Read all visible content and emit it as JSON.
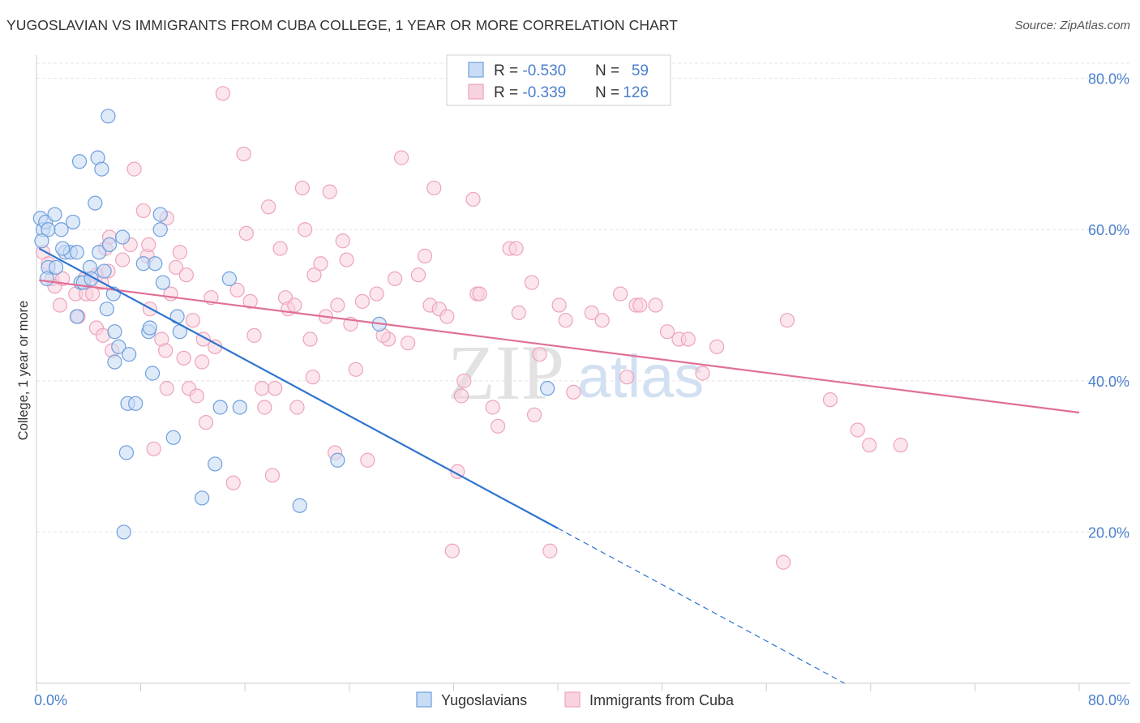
{
  "title": "YUGOSLAVIAN VS IMMIGRANTS FROM CUBA COLLEGE, 1 YEAR OR MORE CORRELATION CHART",
  "source": "Source: ZipAtlas.com",
  "watermark": {
    "zip": "ZIP",
    "atlas": "atlas"
  },
  "colors": {
    "blue": "#2f74d0",
    "blue_fill": "#c9dcf5",
    "blue_stroke": "#6e9fdd",
    "pink": "#e07096",
    "pink_fill": "#f9d2df",
    "pink_stroke": "#eda3bd",
    "axis_text": "#4a7fcb",
    "grid": "#e4e4e4"
  },
  "legend": {
    "rows": [
      {
        "r_label": "R = ",
        "r_value": "-0.530",
        "n_label": "N = ",
        "n_value": "59"
      },
      {
        "r_label": "R = ",
        "r_value": "-0.339",
        "n_label": "N = ",
        "n_value": "126"
      }
    ]
  },
  "bottom_legend": [
    "Yugoslavians",
    "Immigrants from Cuba"
  ],
  "chart_data": {
    "type": "scatter",
    "title": "YUGOSLAVIAN VS IMMIGRANTS FROM CUBA COLLEGE, 1 YEAR OR MORE CORRELATION CHART",
    "xlabel": "",
    "ylabel": "College, 1 year or more",
    "xlim": [
      0,
      80
    ],
    "ylim": [
      0,
      82
    ],
    "x_tick_labels": [
      "0.0%",
      "80.0%"
    ],
    "y_ticks": [
      20,
      40,
      60,
      80
    ],
    "y_tick_labels": [
      "20.0%",
      "40.0%",
      "60.0%",
      "80.0%"
    ],
    "grid": true,
    "series": [
      {
        "name": "Yugoslavians",
        "R": -0.53,
        "N": 59,
        "trend": {
          "x0": 0.2,
          "y0": 57.5,
          "x1": 40.0,
          "y1": 20.5,
          "dash_to_x": 62.0,
          "dash_to_y": 0.0
        },
        "points": [
          [
            0.3,
            61.5
          ],
          [
            0.5,
            60.0
          ],
          [
            0.7,
            61.0
          ],
          [
            0.9,
            60.0
          ],
          [
            0.4,
            58.5
          ],
          [
            1.4,
            62.0
          ],
          [
            1.9,
            60.0
          ],
          [
            2.8,
            61.0
          ],
          [
            3.3,
            69.0
          ],
          [
            4.5,
            63.5
          ],
          [
            4.7,
            69.5
          ],
          [
            5.0,
            68.0
          ],
          [
            5.5,
            75.0
          ],
          [
            2.2,
            57.0
          ],
          [
            2.6,
            57.0
          ],
          [
            3.1,
            57.0
          ],
          [
            2.0,
            57.5
          ],
          [
            0.9,
            55.0
          ],
          [
            1.5,
            55.0
          ],
          [
            4.1,
            55.0
          ],
          [
            4.8,
            57.0
          ],
          [
            5.2,
            54.5
          ],
          [
            5.6,
            58.0
          ],
          [
            6.6,
            59.0
          ],
          [
            8.2,
            55.5
          ],
          [
            9.1,
            55.5
          ],
          [
            9.5,
            60.0
          ],
          [
            9.5,
            62.0
          ],
          [
            0.8,
            53.5
          ],
          [
            3.4,
            53.0
          ],
          [
            3.6,
            53.0
          ],
          [
            9.7,
            53.0
          ],
          [
            14.8,
            53.5
          ],
          [
            3.1,
            48.5
          ],
          [
            5.4,
            49.5
          ],
          [
            10.8,
            48.5
          ],
          [
            6.0,
            46.5
          ],
          [
            8.6,
            46.5
          ],
          [
            8.7,
            47.0
          ],
          [
            11.0,
            46.5
          ],
          [
            6.3,
            44.5
          ],
          [
            6.0,
            42.5
          ],
          [
            7.1,
            43.5
          ],
          [
            8.9,
            41.0
          ],
          [
            7.0,
            37.0
          ],
          [
            7.6,
            37.0
          ],
          [
            14.1,
            36.5
          ],
          [
            15.6,
            36.5
          ],
          [
            10.5,
            32.5
          ],
          [
            6.9,
            30.5
          ],
          [
            13.7,
            29.0
          ],
          [
            23.1,
            29.5
          ],
          [
            12.7,
            24.5
          ],
          [
            20.2,
            23.5
          ],
          [
            6.7,
            20.0
          ],
          [
            26.3,
            47.5
          ],
          [
            39.2,
            39.0
          ],
          [
            4.2,
            53.5
          ],
          [
            5.9,
            51.5
          ]
        ]
      },
      {
        "name": "Immigrants from Cuba",
        "R": -0.339,
        "N": 126,
        "trend": {
          "x0": 0.2,
          "y0": 53.3,
          "x1": 80.0,
          "y1": 35.8
        },
        "points": [
          [
            0.5,
            57.0
          ],
          [
            1.2,
            53.5
          ],
          [
            0.9,
            55.5
          ],
          [
            1.8,
            50.0
          ],
          [
            1.4,
            52.5
          ],
          [
            2.0,
            53.5
          ],
          [
            3.0,
            51.5
          ],
          [
            3.2,
            48.5
          ],
          [
            3.7,
            53.5
          ],
          [
            3.8,
            51.5
          ],
          [
            4.3,
            51.5
          ],
          [
            4.6,
            54.0
          ],
          [
            5.0,
            53.0
          ],
          [
            5.5,
            54.5
          ],
          [
            5.3,
            57.5
          ],
          [
            5.6,
            59.0
          ],
          [
            4.6,
            47.0
          ],
          [
            5.1,
            46.0
          ],
          [
            5.8,
            44.0
          ],
          [
            6.6,
            56.0
          ],
          [
            7.2,
            58.0
          ],
          [
            7.5,
            68.0
          ],
          [
            8.2,
            62.5
          ],
          [
            8.5,
            56.5
          ],
          [
            8.7,
            49.5
          ],
          [
            8.6,
            58.0
          ],
          [
            9.6,
            45.5
          ],
          [
            9.9,
            44.0
          ],
          [
            10.0,
            61.5
          ],
          [
            10.3,
            51.5
          ],
          [
            10.7,
            55.0
          ],
          [
            11.0,
            57.0
          ],
          [
            11.3,
            43.0
          ],
          [
            11.5,
            54.0
          ],
          [
            11.7,
            39.0
          ],
          [
            12.0,
            48.0
          ],
          [
            12.3,
            38.0
          ],
          [
            12.7,
            42.5
          ],
          [
            12.8,
            45.5
          ],
          [
            13.0,
            34.5
          ],
          [
            13.4,
            51.0
          ],
          [
            14.3,
            78.0
          ],
          [
            15.4,
            52.0
          ],
          [
            15.9,
            70.0
          ],
          [
            16.1,
            59.5
          ],
          [
            16.4,
            50.5
          ],
          [
            16.7,
            46.0
          ],
          [
            17.3,
            39.0
          ],
          [
            17.5,
            36.5
          ],
          [
            17.8,
            63.0
          ],
          [
            18.1,
            27.5
          ],
          [
            18.3,
            39.0
          ],
          [
            18.7,
            57.5
          ],
          [
            19.1,
            51.0
          ],
          [
            19.3,
            49.5
          ],
          [
            19.8,
            50.0
          ],
          [
            20.0,
            36.5
          ],
          [
            20.4,
            65.5
          ],
          [
            20.6,
            60.0
          ],
          [
            21.0,
            45.5
          ],
          [
            21.3,
            54.0
          ],
          [
            21.8,
            55.5
          ],
          [
            22.2,
            48.5
          ],
          [
            22.5,
            65.0
          ],
          [
            22.9,
            30.5
          ],
          [
            23.1,
            50.0
          ],
          [
            23.5,
            58.5
          ],
          [
            23.8,
            56.0
          ],
          [
            24.1,
            47.5
          ],
          [
            24.5,
            41.5
          ],
          [
            25.0,
            50.5
          ],
          [
            25.4,
            29.5
          ],
          [
            26.1,
            51.5
          ],
          [
            27.0,
            45.5
          ],
          [
            27.5,
            53.5
          ],
          [
            28.0,
            69.5
          ],
          [
            28.5,
            45.0
          ],
          [
            29.3,
            54.0
          ],
          [
            29.8,
            56.5
          ],
          [
            30.2,
            50.0
          ],
          [
            30.5,
            65.5
          ],
          [
            30.9,
            49.5
          ],
          [
            31.5,
            48.5
          ],
          [
            31.9,
            17.5
          ],
          [
            32.3,
            28.0
          ],
          [
            32.6,
            38.0
          ],
          [
            33.5,
            64.0
          ],
          [
            33.8,
            51.5
          ],
          [
            34.0,
            51.5
          ],
          [
            35.0,
            36.5
          ],
          [
            35.4,
            34.0
          ],
          [
            36.3,
            57.5
          ],
          [
            36.8,
            57.5
          ],
          [
            37.0,
            49.0
          ],
          [
            38.0,
            53.0
          ],
          [
            38.2,
            35.5
          ],
          [
            38.6,
            43.5
          ],
          [
            39.4,
            17.5
          ],
          [
            40.1,
            50.0
          ],
          [
            40.6,
            48.0
          ],
          [
            41.2,
            38.5
          ],
          [
            42.6,
            49.0
          ],
          [
            43.4,
            48.0
          ],
          [
            44.8,
            51.5
          ],
          [
            45.3,
            40.5
          ],
          [
            46.0,
            50.0
          ],
          [
            46.3,
            50.0
          ],
          [
            47.5,
            50.0
          ],
          [
            48.4,
            46.5
          ],
          [
            49.3,
            45.5
          ],
          [
            50.0,
            45.5
          ],
          [
            51.1,
            41.0
          ],
          [
            52.2,
            44.5
          ],
          [
            57.3,
            16.0
          ],
          [
            57.6,
            48.0
          ],
          [
            60.9,
            37.5
          ],
          [
            63.0,
            33.5
          ],
          [
            63.9,
            31.5
          ],
          [
            66.3,
            31.5
          ],
          [
            13.7,
            44.5
          ],
          [
            10.0,
            39.0
          ],
          [
            9.0,
            31.0
          ],
          [
            15.1,
            26.5
          ],
          [
            21.2,
            40.5
          ],
          [
            26.6,
            46.0
          ],
          [
            32.8,
            40.0
          ]
        ]
      }
    ]
  }
}
